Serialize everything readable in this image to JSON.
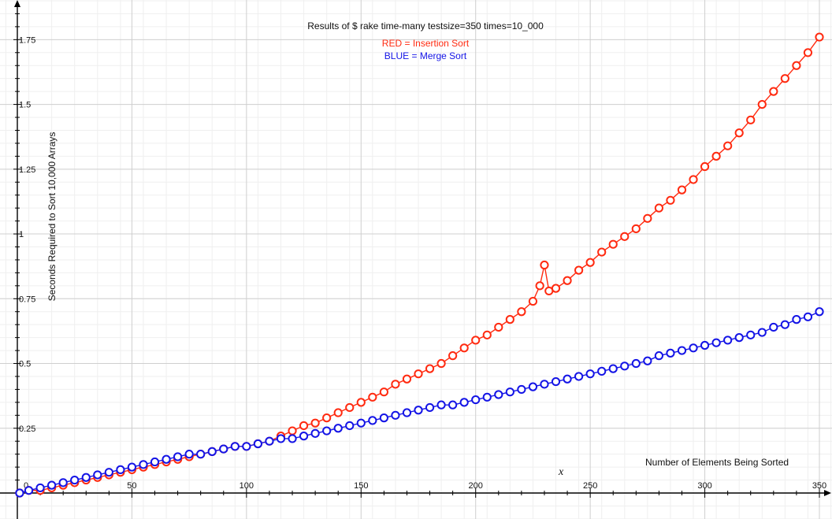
{
  "chart_data": {
    "type": "scatter",
    "title": "Results of $ rake time-many testsize=350 times=10_000",
    "annotations": {
      "red_legend": "RED = Insertion Sort",
      "blue_legend": "BLUE = Merge Sort",
      "x_marker": "x"
    },
    "xlabel": "Number of Elements Being Sorted",
    "ylabel": "Seconds Required to Sort 10,000 Arrays",
    "xlim": [
      0,
      350
    ],
    "ylim": [
      0,
      1.9
    ],
    "x_ticks": [
      "50",
      "100",
      "150",
      "200",
      "250",
      "300",
      "350"
    ],
    "y_ticks": [
      "0.25",
      "0.5",
      "0.75",
      "1",
      "1.25",
      "1.5",
      "1.75"
    ],
    "origin_label": "0",
    "grid": true,
    "series": [
      {
        "name": "RED = Insertion Sort",
        "color": "#ff2a10",
        "x": [
          1,
          5,
          10,
          15,
          20,
          25,
          30,
          35,
          40,
          45,
          50,
          55,
          60,
          65,
          70,
          75,
          80,
          85,
          90,
          95,
          100,
          105,
          110,
          115,
          120,
          125,
          130,
          135,
          140,
          145,
          150,
          155,
          160,
          165,
          170,
          175,
          180,
          185,
          190,
          195,
          200,
          205,
          210,
          215,
          220,
          225,
          228,
          230,
          232,
          235,
          240,
          245,
          250,
          255,
          260,
          265,
          270,
          275,
          280,
          285,
          290,
          295,
          300,
          305,
          310,
          315,
          320,
          325,
          330,
          335,
          340,
          345,
          350
        ],
        "y": [
          0.0,
          0.01,
          0.01,
          0.02,
          0.03,
          0.04,
          0.05,
          0.06,
          0.07,
          0.08,
          0.09,
          0.1,
          0.11,
          0.12,
          0.13,
          0.14,
          0.15,
          0.16,
          0.17,
          0.18,
          0.18,
          0.19,
          0.2,
          0.22,
          0.24,
          0.26,
          0.27,
          0.29,
          0.31,
          0.33,
          0.35,
          0.37,
          0.39,
          0.42,
          0.44,
          0.46,
          0.48,
          0.5,
          0.53,
          0.56,
          0.59,
          0.61,
          0.64,
          0.67,
          0.7,
          0.74,
          0.8,
          0.88,
          0.78,
          0.79,
          0.82,
          0.86,
          0.89,
          0.93,
          0.96,
          0.99,
          1.02,
          1.06,
          1.1,
          1.13,
          1.17,
          1.21,
          1.26,
          1.3,
          1.34,
          1.39,
          1.44,
          1.5,
          1.55,
          1.6,
          1.65,
          1.7,
          1.76
        ]
      },
      {
        "name": "BLUE = Merge Sort",
        "color": "#1414e6",
        "x": [
          1,
          5,
          10,
          15,
          20,
          25,
          30,
          35,
          40,
          45,
          50,
          55,
          60,
          65,
          70,
          75,
          80,
          85,
          90,
          95,
          100,
          105,
          110,
          115,
          120,
          125,
          130,
          135,
          140,
          145,
          150,
          155,
          160,
          165,
          170,
          175,
          180,
          185,
          190,
          195,
          200,
          205,
          210,
          215,
          220,
          225,
          230,
          235,
          240,
          245,
          250,
          255,
          260,
          265,
          270,
          275,
          280,
          285,
          290,
          295,
          300,
          305,
          310,
          315,
          320,
          325,
          330,
          335,
          340,
          345,
          350
        ],
        "y": [
          0.0,
          0.01,
          0.02,
          0.03,
          0.04,
          0.05,
          0.06,
          0.07,
          0.08,
          0.09,
          0.1,
          0.11,
          0.12,
          0.13,
          0.14,
          0.15,
          0.15,
          0.16,
          0.17,
          0.18,
          0.18,
          0.19,
          0.2,
          0.21,
          0.21,
          0.22,
          0.23,
          0.24,
          0.25,
          0.26,
          0.27,
          0.28,
          0.29,
          0.3,
          0.31,
          0.32,
          0.33,
          0.34,
          0.34,
          0.35,
          0.36,
          0.37,
          0.38,
          0.39,
          0.4,
          0.41,
          0.42,
          0.43,
          0.44,
          0.45,
          0.46,
          0.47,
          0.48,
          0.49,
          0.5,
          0.51,
          0.53,
          0.54,
          0.55,
          0.56,
          0.57,
          0.58,
          0.59,
          0.6,
          0.61,
          0.62,
          0.64,
          0.65,
          0.67,
          0.68,
          0.7
        ]
      }
    ]
  }
}
